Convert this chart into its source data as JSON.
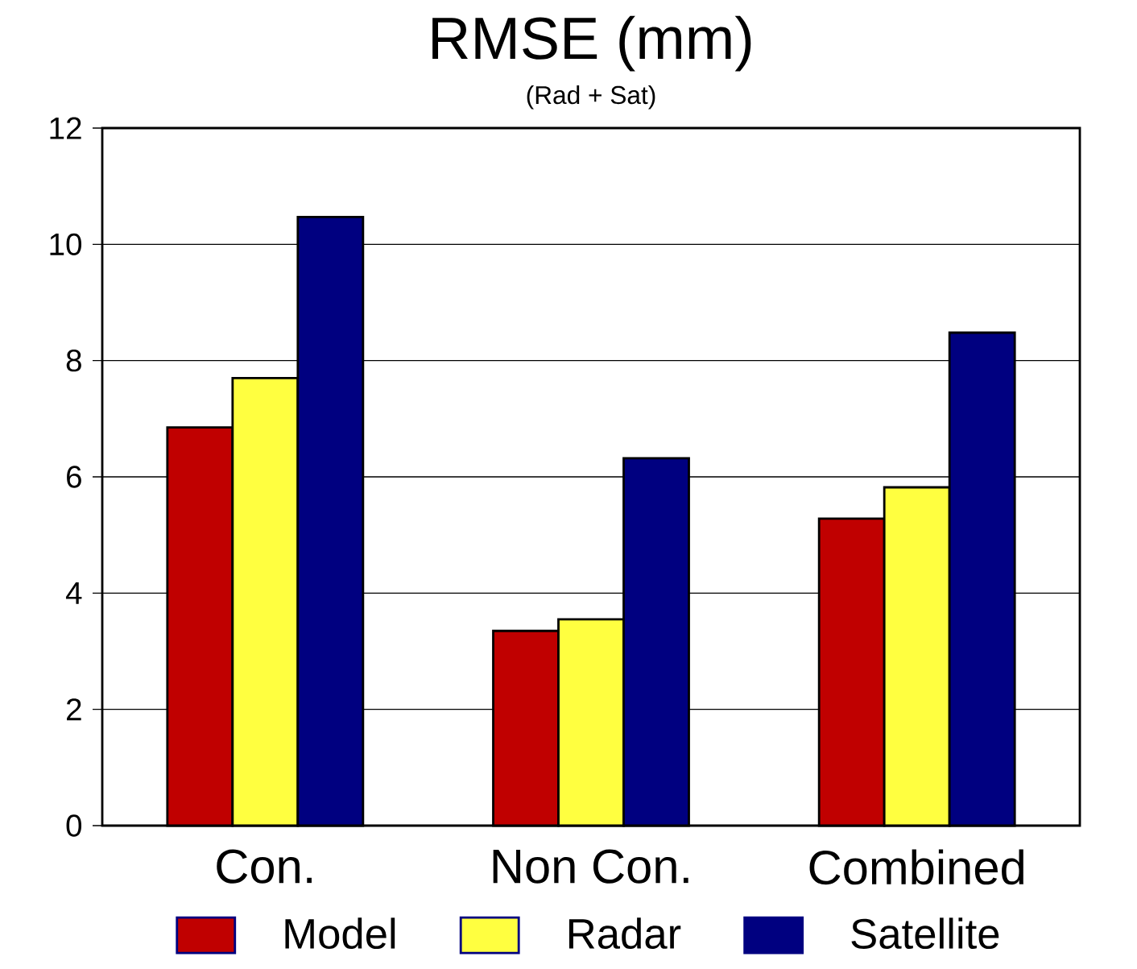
{
  "chart_data": {
    "type": "bar",
    "title": "RMSE (mm)",
    "subtitle": "(Rad + Sat)",
    "categories": [
      "Con.",
      "Non Con.",
      "Combined"
    ],
    "series": [
      {
        "name": "Model",
        "color": "#c00000",
        "values": [
          6.85,
          3.35,
          5.28
        ]
      },
      {
        "name": "Radar",
        "color": "#ffff40",
        "values": [
          7.7,
          3.55,
          5.82
        ]
      },
      {
        "name": "Satellite",
        "color": "#000080",
        "values": [
          10.47,
          6.32,
          8.48
        ]
      }
    ],
    "ylim": [
      0,
      12
    ],
    "yticks": [
      0,
      2,
      4,
      6,
      8,
      10,
      12
    ],
    "grid": "y",
    "legend": "bottom"
  }
}
